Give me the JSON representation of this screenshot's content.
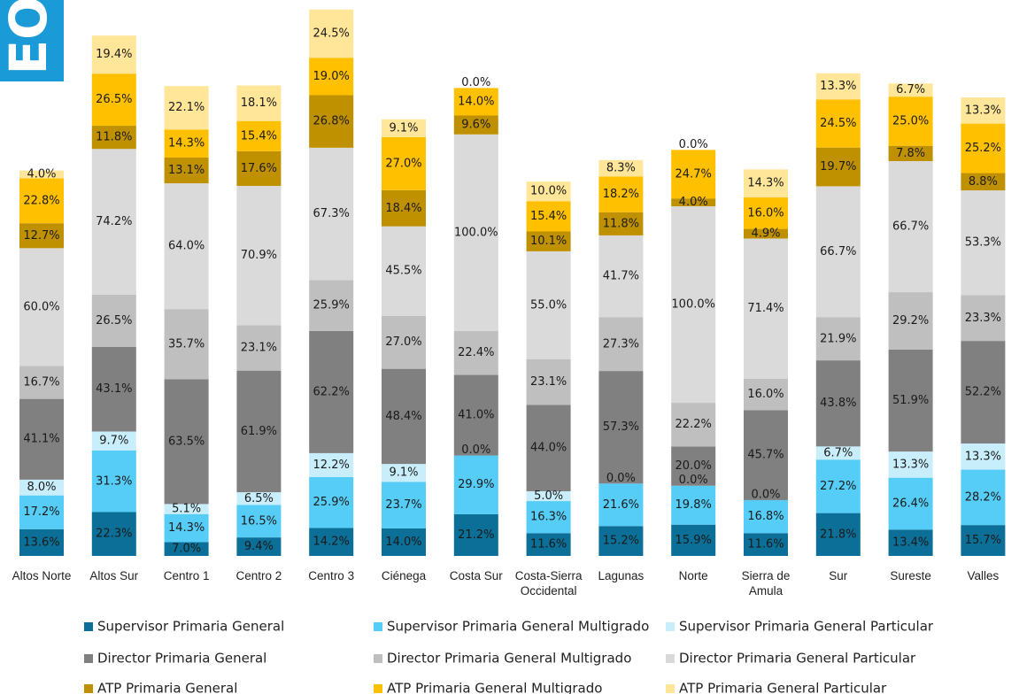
{
  "corner_label": "EO",
  "chart_data": {
    "type": "stacked_bar",
    "categories": [
      "Altos Norte",
      "Altos Sur",
      "Centro 1",
      "Centro 2",
      "Centro 3",
      "Ciénega",
      "Costa Sur",
      "Costa-Sierra Occidental",
      "Lagunas",
      "Norte",
      "Sierra de Amula",
      "Sur",
      "Sureste",
      "Valles"
    ],
    "series": [
      {
        "name": "Supervisor Primaria General",
        "color": "#0b6f97",
        "values": [
          13.6,
          22.3,
          7.0,
          9.4,
          14.2,
          14.0,
          21.2,
          11.6,
          15.2,
          15.9,
          11.6,
          21.8,
          13.4,
          15.7
        ],
        "value_labels": [
          "13.6%",
          "22.3%",
          "7.0%",
          "9.4%",
          "14.2%",
          "14.0%",
          "21.2%",
          "11.6%",
          "15.2%",
          "15.9%",
          "11.6%",
          "21.8%",
          "13.4%",
          "15.7%"
        ]
      },
      {
        "name": "Supervisor Primaria General Multigrado",
        "color": "#55cdf7",
        "values": [
          17.2,
          31.3,
          14.3,
          16.5,
          25.9,
          23.7,
          29.9,
          16.3,
          21.6,
          19.8,
          16.8,
          27.2,
          26.4,
          28.2
        ],
        "value_labels": [
          "17.2%",
          "31.3%",
          "14.3%",
          "16.5%",
          "25.9%",
          "23.7%",
          "29.9%",
          "16.3%",
          "21.6%",
          "19.8%",
          "16.8%",
          "27.2%",
          "26.4%",
          "28.2%"
        ]
      },
      {
        "name": "Supervisor Primaria General Particular",
        "color": "#c9eefb",
        "values": [
          8.0,
          9.7,
          5.1,
          6.5,
          12.2,
          9.1,
          0.0,
          5.0,
          0.0,
          0.0,
          0.0,
          6.7,
          13.3,
          13.3
        ],
        "value_labels": [
          "8.0%",
          "9.7%",
          "5.1%",
          "6.5%",
          "12.2%",
          "9.1%",
          "0.0%",
          "5.0%",
          "0.0%",
          "0.0%",
          "0.0%",
          "6.7%",
          "13.3%",
          "13.3%"
        ]
      },
      {
        "name": "Director Primaria General",
        "color": "#808080",
        "values": [
          41.1,
          43.1,
          63.5,
          61.9,
          62.2,
          48.4,
          41.0,
          44.0,
          57.3,
          20.0,
          45.7,
          43.8,
          51.9,
          52.2
        ],
        "value_labels": [
          "41.1%",
          "43.1%",
          "63.5%",
          "61.9%",
          "62.2%",
          "48.4%",
          "41.0%",
          "44.0%",
          "57.3%",
          "20.0%",
          "45.7%",
          "43.8%",
          "51.9%",
          "52.2%"
        ]
      },
      {
        "name": "Director Primaria General Multigrado",
        "color": "#bfbfbf",
        "values": [
          16.7,
          26.5,
          35.7,
          23.1,
          25.9,
          27.0,
          22.4,
          23.1,
          27.3,
          22.2,
          16.0,
          21.9,
          29.2,
          23.3
        ],
        "value_labels": [
          "16.7%",
          "26.5%",
          "35.7%",
          "23.1%",
          "25.9%",
          "27.0%",
          "22.4%",
          "23.1%",
          "27.3%",
          "22.2%",
          "16.0%",
          "21.9%",
          "29.2%",
          "23.3%"
        ]
      },
      {
        "name": "Director Primaria General Particular",
        "color": "#dadada",
        "values": [
          60.0,
          74.2,
          64.0,
          70.9,
          67.3,
          45.5,
          100.0,
          55.0,
          41.7,
          100.0,
          71.4,
          66.7,
          66.7,
          53.3
        ],
        "value_labels": [
          "60.0%",
          "74.2%",
          "64.0%",
          "70.9%",
          "67.3%",
          "45.5%",
          "100.0%",
          "55.0%",
          "41.7%",
          "100.0%",
          "71.4%",
          "66.7%",
          "66.7%",
          "53.3%"
        ]
      },
      {
        "name": "ATP Primaria General",
        "color": "#bf9000",
        "values": [
          12.7,
          11.8,
          13.1,
          17.6,
          26.8,
          18.4,
          9.6,
          10.1,
          11.8,
          4.0,
          4.9,
          19.7,
          7.8,
          8.8
        ],
        "value_labels": [
          "12.7%",
          "11.8%",
          "13.1%",
          "17.6%",
          "26.8%",
          "18.4%",
          "9.6%",
          "10.1%",
          "11.8%",
          "4.0%",
          "4.9%",
          "19.7%",
          "7.8%",
          "8.8%"
        ]
      },
      {
        "name": "ATP Primaria General Multigrado",
        "color": "#ffc000",
        "values": [
          22.8,
          26.5,
          14.3,
          15.4,
          19.0,
          27.0,
          14.0,
          15.4,
          18.2,
          24.7,
          16.0,
          24.5,
          25.0,
          25.2
        ],
        "value_labels": [
          "22.8%",
          "26.5%",
          "14.3%",
          "15.4%",
          "19.0%",
          "27.0%",
          "14.0%",
          "15.4%",
          "18.2%",
          "24.7%",
          "16.0%",
          "24.5%",
          "25.0%",
          "25.2%"
        ]
      },
      {
        "name": "ATP Primaria General Particular",
        "color": "#ffe699",
        "values": [
          4.0,
          19.4,
          22.1,
          18.1,
          24.5,
          9.1,
          0.0,
          10.0,
          8.3,
          0.0,
          14.3,
          13.3,
          6.7,
          13.3
        ],
        "value_labels": [
          "4.0%",
          "19.4%",
          "22.1%",
          "18.1%",
          "24.5%",
          "9.1%",
          "0.0%",
          "10.0%",
          "8.3%",
          "0.0%",
          "14.3%",
          "13.3%",
          "6.7%",
          "13.3%"
        ]
      }
    ]
  }
}
